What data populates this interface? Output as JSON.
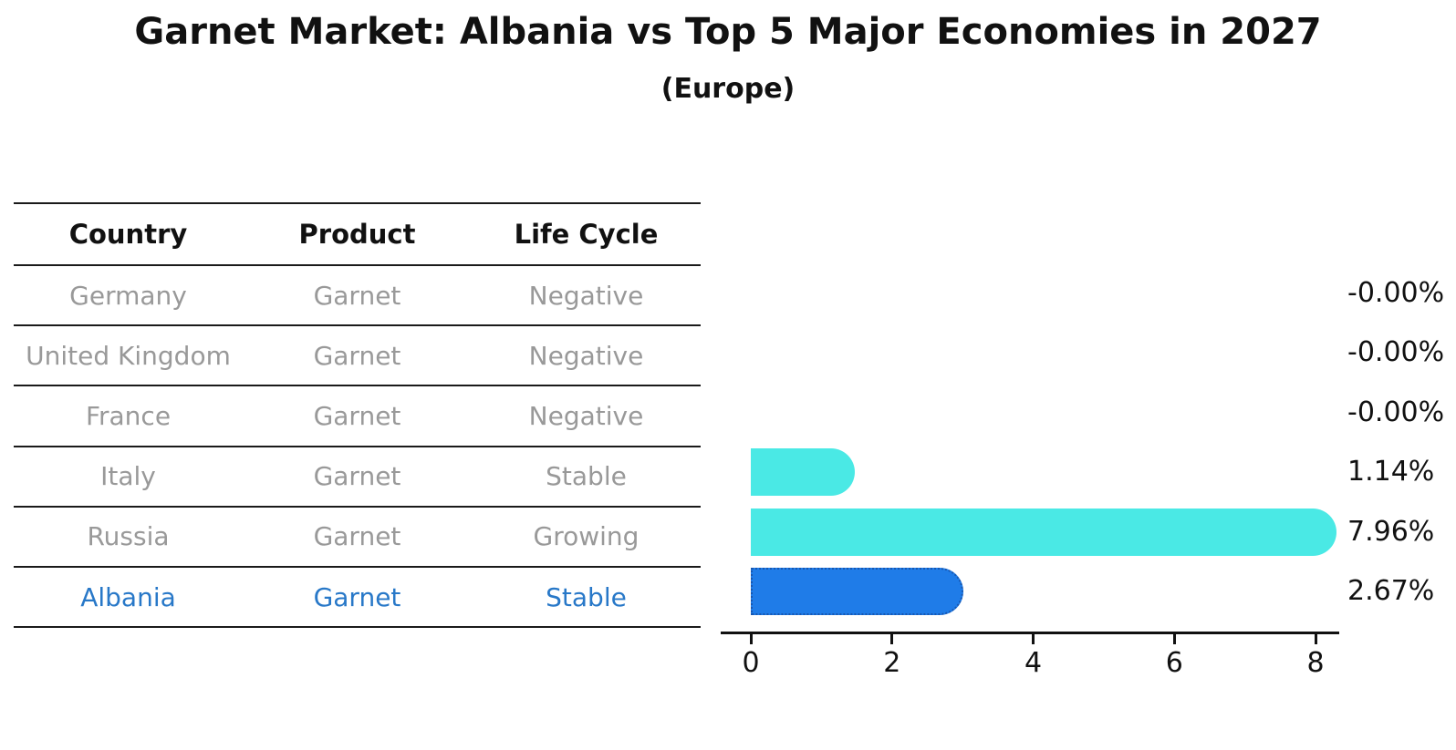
{
  "title": "Garnet Market: Albania vs Top 5 Major Economies in 2027",
  "subtitle": "(Europe)",
  "table": {
    "headers": [
      "Country",
      "Product",
      "Life Cycle"
    ],
    "rows": [
      {
        "country": "Germany",
        "product": "Garnet",
        "life_cycle": "Negative",
        "highlight": false
      },
      {
        "country": "United Kingdom",
        "product": "Garnet",
        "life_cycle": "Negative",
        "highlight": false
      },
      {
        "country": "France",
        "product": "Garnet",
        "life_cycle": "Negative",
        "highlight": false
      },
      {
        "country": "Italy",
        "product": "Garnet",
        "life_cycle": "Stable",
        "highlight": false
      },
      {
        "country": "Russia",
        "product": "Garnet",
        "life_cycle": "Growing",
        "highlight": false
      },
      {
        "country": "Albania",
        "product": "Garnet",
        "life_cycle": "Stable",
        "highlight": true
      }
    ]
  },
  "chart_data": {
    "type": "bar",
    "orientation": "horizontal",
    "title": "Garnet Market: Albania vs Top 5 Major Economies in 2027",
    "subtitle": "(Europe)",
    "categories": [
      "Germany",
      "United Kingdom",
      "France",
      "Italy",
      "Russia",
      "Albania"
    ],
    "values": [
      -0.0,
      -0.0,
      -0.0,
      1.14,
      7.96,
      2.67
    ],
    "value_labels": [
      "-0.00%",
      "-0.00%",
      "-0.00%",
      "1.14%",
      "7.96%",
      "2.67%"
    ],
    "x_ticks": [
      0,
      2,
      4,
      6,
      8
    ],
    "xlim": [
      0,
      8.4
    ],
    "xlabel": "",
    "ylabel": "",
    "grid": false,
    "legend": false,
    "bar_color": "#4ae9e5",
    "highlight_index": 5,
    "highlight_bar_color": "#1f7ce8",
    "highlight_border_color": "#1857b0",
    "highlight_border_style": "dotted"
  },
  "colors": {
    "background": "#ffffff",
    "text_primary": "#111111",
    "text_muted": "#999999",
    "highlight_text": "#2878c8",
    "table_line": "#1a1a1a"
  }
}
